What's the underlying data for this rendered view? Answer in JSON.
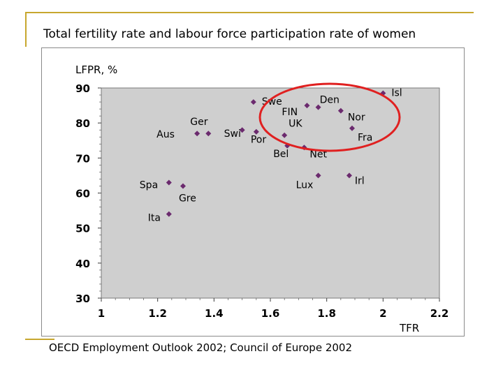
{
  "slide": {
    "title": "Total fertility rate and labour force participation rate of women",
    "source": "OECD Employment Outlook 2002; Council of Europe 2002"
  },
  "colors": {
    "accent_line": "#c7a72e",
    "plot_bg": "#cfcfcf",
    "marker": "#6b2a6e",
    "highlight_ellipse": "#e02020"
  },
  "chart_data": {
    "type": "scatter",
    "xlabel": "TFR",
    "ylabel": "LFPR, %",
    "xlim": [
      1,
      2.2
    ],
    "ylim": [
      30,
      90
    ],
    "x_ticks": [
      "1",
      "1.2",
      "1.4",
      "1.6",
      "1.8",
      "2",
      "2.2"
    ],
    "y_ticks": [
      "90",
      "80",
      "70",
      "60",
      "50",
      "40",
      "30"
    ],
    "x_tick_values": [
      1,
      1.2,
      1.4,
      1.6,
      1.8,
      2,
      2.2
    ],
    "y_tick_values": [
      90,
      80,
      70,
      60,
      50,
      40,
      30
    ],
    "grid": false,
    "points": [
      {
        "label": "Isl",
        "x": 2.0,
        "y": 88.5
      },
      {
        "label": "Swe",
        "x": 1.54,
        "y": 86
      },
      {
        "label": "FIN",
        "x": 1.73,
        "y": 85
      },
      {
        "label": "Den",
        "x": 1.77,
        "y": 84.5
      },
      {
        "label": "Nor",
        "x": 1.85,
        "y": 83.5
      },
      {
        "label": "Fra",
        "x": 1.89,
        "y": 78.5
      },
      {
        "label": "Ger",
        "x": 1.38,
        "y": 77
      },
      {
        "label": "Aus",
        "x": 1.34,
        "y": 77
      },
      {
        "label": "Swi",
        "x": 1.5,
        "y": 78
      },
      {
        "label": "Por",
        "x": 1.55,
        "y": 77.5
      },
      {
        "label": "UK",
        "x": 1.65,
        "y": 76.5
      },
      {
        "label": "Bel",
        "x": 1.66,
        "y": 73.5
      },
      {
        "label": "Net",
        "x": 1.72,
        "y": 73
      },
      {
        "label": "Lux",
        "x": 1.77,
        "y": 65
      },
      {
        "label": "Irl",
        "x": 1.88,
        "y": 65
      },
      {
        "label": "Spa",
        "x": 1.24,
        "y": 63
      },
      {
        "label": "Gre",
        "x": 1.29,
        "y": 62
      },
      {
        "label": "Ita",
        "x": 1.24,
        "y": 54
      }
    ],
    "highlight": {
      "shape": "ellipse",
      "around": [
        "Swe",
        "FIN",
        "Den",
        "Isl",
        "Nor",
        "Fra",
        "UK",
        "Net"
      ]
    }
  }
}
